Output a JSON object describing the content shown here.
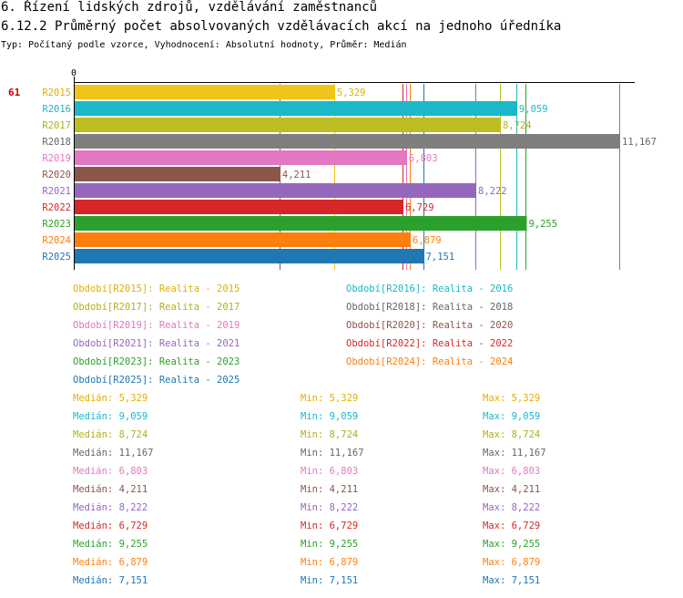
{
  "header": {
    "title": "6. Řízení lidských zdrojů, vzdělávání zaměstnanců",
    "subtitle": "6.12.2 Průměrný počet absolvovaných vzdělávacích akcí na jednoho úředníka",
    "meta": "Typ: Počítaný podle vzorce, Vyhodnocení: Absolutní hodnoty, Průměr: Medián"
  },
  "chart_data": {
    "type": "bar",
    "orientation": "horizontal",
    "row_marker": "61",
    "zero_label": "0",
    "xlim": [
      0,
      11.167
    ],
    "categories": [
      "R2015",
      "R2016",
      "R2017",
      "R2018",
      "R2019",
      "R2020",
      "R2021",
      "R2022",
      "R2023",
      "R2024",
      "R2025"
    ],
    "values": [
      5.329,
      9.059,
      8.724,
      11.167,
      6.803,
      4.211,
      8.222,
      6.729,
      9.255,
      6.879,
      7.151
    ],
    "value_labels": [
      "5,329",
      "9,059",
      "8,724",
      "11,167",
      "6,803",
      "4,211",
      "8,222",
      "6,729",
      "9,255",
      "6,879",
      "7,151"
    ],
    "colors": [
      "#f0c419",
      "#1ab8c8",
      "#bcbd22",
      "#7f7f7f",
      "#e377c2",
      "#8c564b",
      "#9467bd",
      "#d62728",
      "#2ca02c",
      "#ff7f0e",
      "#1f77b4"
    ],
    "label_colors": [
      "#e0b000",
      "#1ab8c8",
      "#b0b020",
      "#666666",
      "#e377c2",
      "#8c564b",
      "#9467bd",
      "#d62728",
      "#2ca02c",
      "#ff7f0e",
      "#1f77b4"
    ],
    "period_legend": [
      "Období[R2015]: Realita - 2015",
      "Období[R2016]: Realita - 2016",
      "Období[R2017]: Realita - 2017",
      "Období[R2018]: Realita - 2018",
      "Období[R2019]: Realita - 2019",
      "Období[R2020]: Realita - 2020",
      "Období[R2021]: Realita - 2021",
      "Období[R2022]: Realita - 2022",
      "Období[R2023]: Realita - 2023",
      "Období[R2024]: Realita - 2024",
      "Období[R2025]: Realita - 2025"
    ],
    "stats": [
      {
        "median": "Medián: 5,329",
        "min": "Min: 5,329",
        "max": "Max: 5,329"
      },
      {
        "median": "Medián: 9,059",
        "min": "Min: 9,059",
        "max": "Max: 9,059"
      },
      {
        "median": "Medián: 8,724",
        "min": "Min: 8,724",
        "max": "Max: 8,724"
      },
      {
        "median": "Medián: 11,167",
        "min": "Min: 11,167",
        "max": "Max: 11,167"
      },
      {
        "median": "Medián: 6,803",
        "min": "Min: 6,803",
        "max": "Max: 6,803"
      },
      {
        "median": "Medián: 4,211",
        "min": "Min: 4,211",
        "max": "Max: 4,211"
      },
      {
        "median": "Medián: 8,222",
        "min": "Min: 8,222",
        "max": "Max: 8,222"
      },
      {
        "median": "Medián: 6,729",
        "min": "Min: 6,729",
        "max": "Max: 6,729"
      },
      {
        "median": "Medián: 9,255",
        "min": "Min: 9,255",
        "max": "Max: 9,255"
      },
      {
        "median": "Medián: 6,879",
        "min": "Min: 6,879",
        "max": "Max: 6,879"
      },
      {
        "median": "Medián: 7,151",
        "min": "Min: 7,151",
        "max": "Max: 7,151"
      }
    ]
  }
}
